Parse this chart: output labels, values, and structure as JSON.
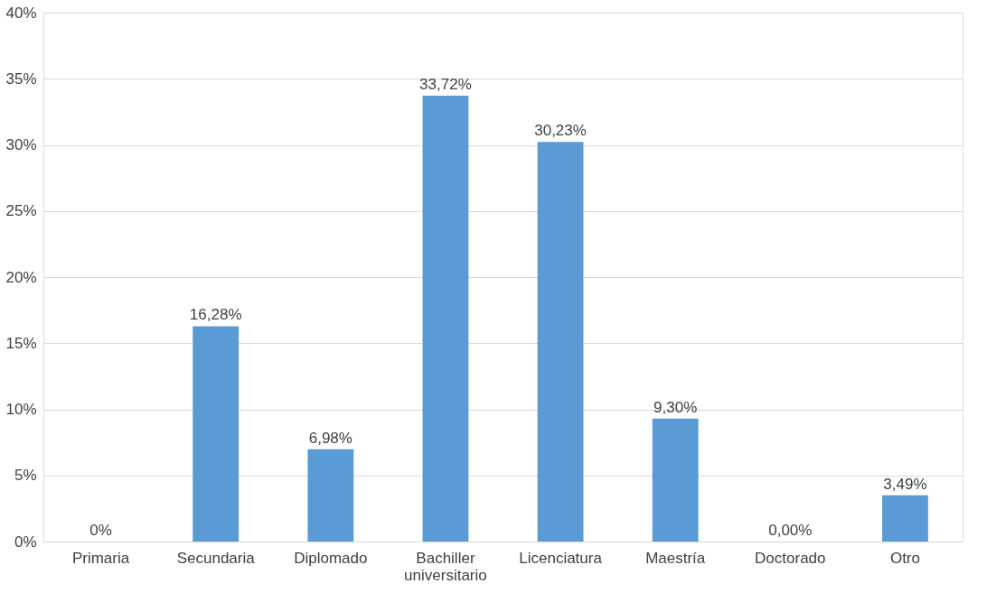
{
  "chart_data": {
    "type": "bar",
    "categories": [
      "Primaria",
      "Secundaria",
      "Diplomado",
      "Bachiller universitario",
      "Licenciatura",
      "Maestría",
      "Doctorado",
      "Otro"
    ],
    "values": [
      0,
      16.28,
      6.98,
      33.72,
      30.23,
      9.3,
      0.0,
      3.49
    ],
    "value_labels": [
      "0%",
      "16,28%",
      "6,98%",
      "33,72%",
      "30,23%",
      "9,30%",
      "0,00%",
      "3,49%"
    ],
    "color": "#5b9bd5",
    "ylim": [
      0,
      40
    ],
    "yticks": [
      {
        "value": 0,
        "label": "0%"
      },
      {
        "value": 5,
        "label": "5%"
      },
      {
        "value": 10,
        "label": "10%"
      },
      {
        "value": 15,
        "label": "15%"
      },
      {
        "value": 20,
        "label": "20%"
      },
      {
        "value": 25,
        "label": "25%"
      },
      {
        "value": 30,
        "label": "30%"
      },
      {
        "value": 35,
        "label": "35%"
      },
      {
        "value": 40,
        "label": "40%"
      }
    ],
    "grid": "y"
  }
}
